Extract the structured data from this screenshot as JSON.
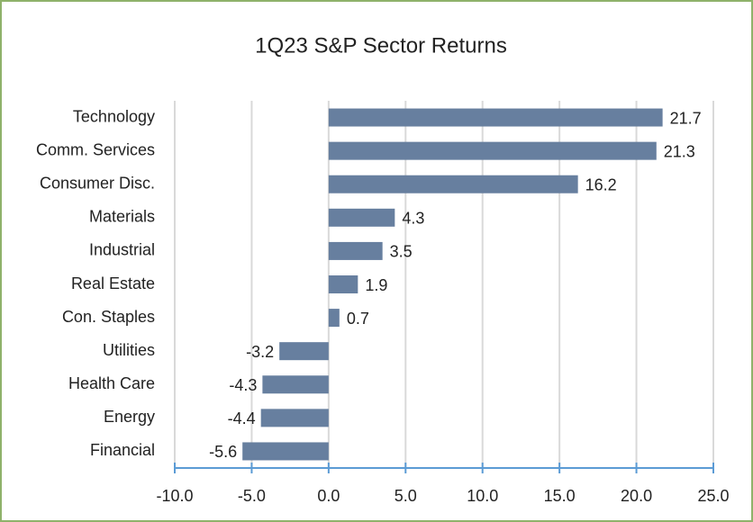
{
  "chart_data": {
    "type": "bar",
    "orientation": "horizontal",
    "title": "1Q23 S&P Sector Returns",
    "categories": [
      "Technology",
      "Comm. Services",
      "Consumer Disc.",
      "Materials",
      "Industrial",
      "Real Estate",
      "Con. Staples",
      "Utilities",
      "Health Care",
      "Energy",
      "Financial"
    ],
    "values": [
      21.7,
      21.3,
      16.2,
      4.3,
      3.5,
      1.9,
      0.7,
      -3.2,
      -4.3,
      -4.4,
      -5.6
    ],
    "color": "#677f9f",
    "xlim": [
      -10,
      25
    ],
    "xticks": [
      {
        "value": -10,
        "label": "-10.0"
      },
      {
        "value": -5,
        "label": "-5.0"
      },
      {
        "value": 0,
        "label": "0.0"
      },
      {
        "value": 5,
        "label": "5.0"
      },
      {
        "value": 10,
        "label": "10.0"
      },
      {
        "value": 15,
        "label": "15.0"
      },
      {
        "value": 20,
        "label": "20.0"
      },
      {
        "value": 25,
        "label": "25.0"
      }
    ],
    "grid": true
  }
}
